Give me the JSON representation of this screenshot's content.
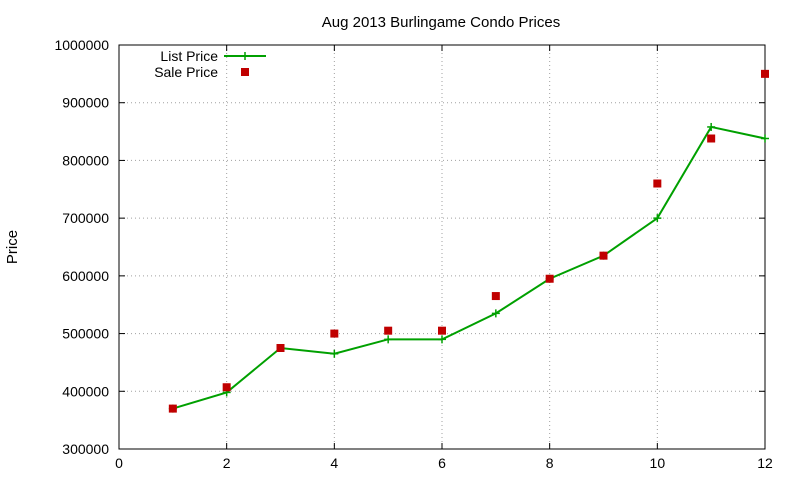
{
  "chart_data": {
    "type": "line",
    "title": "Aug 2013 Burlingame Condo Prices",
    "xlabel": "",
    "ylabel": "Price",
    "xlim": [
      0,
      12
    ],
    "ylim": [
      300000,
      1000000
    ],
    "x_ticks": [
      0,
      2,
      4,
      6,
      8,
      10,
      12
    ],
    "y_ticks": [
      300000,
      400000,
      500000,
      600000,
      700000,
      800000,
      900000,
      1000000
    ],
    "grid": true,
    "legend_position": "top-left",
    "series": [
      {
        "name": "List Price",
        "style": "line-with-plus-markers",
        "color": "#00a000",
        "points": [
          [
            1,
            370000
          ],
          [
            2,
            398000
          ],
          [
            3,
            475000
          ],
          [
            4,
            465000
          ],
          [
            5,
            490000
          ],
          [
            6,
            490000
          ],
          [
            7,
            535000
          ],
          [
            8,
            595000
          ],
          [
            9,
            635000
          ],
          [
            10,
            700000
          ],
          [
            11,
            858000
          ],
          [
            12,
            838000
          ]
        ]
      },
      {
        "name": "Sale Price",
        "style": "square-points",
        "color": "#c00000",
        "points": [
          [
            1,
            370000
          ],
          [
            2,
            407000
          ],
          [
            3,
            475000
          ],
          [
            4,
            500000
          ],
          [
            5,
            505000
          ],
          [
            6,
            505000
          ],
          [
            7,
            565000
          ],
          [
            8,
            595000
          ],
          [
            9,
            635000
          ],
          [
            10,
            760000
          ],
          [
            11,
            838000
          ],
          [
            12,
            950000
          ]
        ]
      }
    ]
  }
}
